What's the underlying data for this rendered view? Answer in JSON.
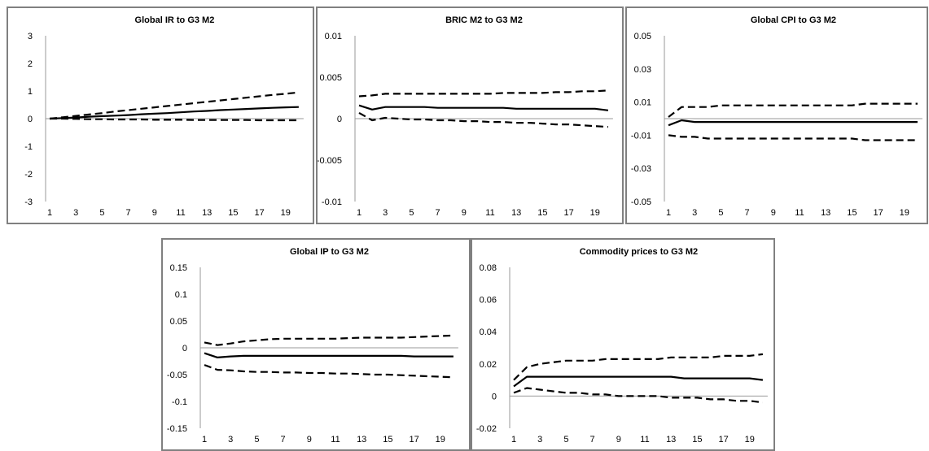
{
  "chart_data": [
    {
      "type": "line",
      "title": "Global IR to G3 M2",
      "ylim": [
        -3,
        3
      ],
      "yticks": [
        "3",
        "2",
        "1",
        "0",
        "-1",
        "-2",
        "-3"
      ],
      "ytick_values": [
        3,
        2,
        1,
        0,
        -1,
        -2,
        -3
      ],
      "x": [
        1,
        2,
        3,
        4,
        5,
        6,
        7,
        8,
        9,
        10,
        11,
        12,
        13,
        14,
        15,
        16,
        17,
        18,
        19,
        20
      ],
      "xticks": [
        "1",
        "3",
        "5",
        "7",
        "9",
        "11",
        "13",
        "15",
        "17",
        "19"
      ],
      "series": [
        {
          "style": "solid",
          "values": [
            0,
            0.02,
            0.04,
            0.07,
            0.09,
            0.11,
            0.13,
            0.16,
            0.18,
            0.2,
            0.23,
            0.26,
            0.28,
            0.31,
            0.33,
            0.35,
            0.37,
            0.39,
            0.41,
            0.42
          ]
        },
        {
          "style": "dashed",
          "values": [
            0,
            0.05,
            0.1,
            0.15,
            0.2,
            0.26,
            0.31,
            0.36,
            0.41,
            0.46,
            0.51,
            0.56,
            0.61,
            0.66,
            0.71,
            0.76,
            0.81,
            0.86,
            0.9,
            0.95
          ]
        },
        {
          "style": "dashed",
          "values": [
            0,
            0,
            -0.01,
            -0.02,
            -0.02,
            -0.03,
            -0.03,
            -0.03,
            -0.04,
            -0.04,
            -0.04,
            -0.05,
            -0.05,
            -0.05,
            -0.05,
            -0.05,
            -0.06,
            -0.06,
            -0.06,
            -0.06
          ]
        }
      ]
    },
    {
      "type": "line",
      "title": "BRIC M2  to G3 M2",
      "ylim": [
        -0.01,
        0.01
      ],
      "yticks": [
        "0.01",
        "0.005",
        "0",
        "-0.005",
        "-0.01"
      ],
      "ytick_values": [
        0.01,
        0.005,
        0,
        -0.005,
        -0.01
      ],
      "x": [
        1,
        2,
        3,
        4,
        5,
        6,
        7,
        8,
        9,
        10,
        11,
        12,
        13,
        14,
        15,
        16,
        17,
        18,
        19,
        20
      ],
      "xticks": [
        "1",
        "3",
        "5",
        "7",
        "9",
        "11",
        "13",
        "15",
        "17",
        "19"
      ],
      "series": [
        {
          "style": "solid",
          "values": [
            0.0016,
            0.0011,
            0.0014,
            0.0014,
            0.0014,
            0.0014,
            0.0013,
            0.0013,
            0.0013,
            0.0013,
            0.0013,
            0.0013,
            0.0012,
            0.0012,
            0.0012,
            0.0012,
            0.0012,
            0.0012,
            0.0012,
            0.001
          ]
        },
        {
          "style": "dashed",
          "values": [
            0.0027,
            0.0028,
            0.003,
            0.003,
            0.003,
            0.003,
            0.003,
            0.003,
            0.003,
            0.003,
            0.003,
            0.0031,
            0.0031,
            0.0031,
            0.0031,
            0.0032,
            0.0032,
            0.0033,
            0.0033,
            0.0034
          ]
        },
        {
          "style": "dashed",
          "values": [
            0.0007,
            -0.0002,
            0.0001,
            0,
            -0.0001,
            -0.0001,
            -0.0002,
            -0.0002,
            -0.0003,
            -0.0003,
            -0.0004,
            -0.0004,
            -0.0005,
            -0.0005,
            -0.0006,
            -0.0007,
            -0.0007,
            -0.0008,
            -0.0009,
            -0.001
          ]
        }
      ]
    },
    {
      "type": "line",
      "title": "Global CPI to G3 M2",
      "ylim": [
        -0.05,
        0.05
      ],
      "yticks": [
        "0.05",
        "0.03",
        "0.01",
        "-0.01",
        "-0.03",
        "-0.05"
      ],
      "ytick_values": [
        0.05,
        0.03,
        0.01,
        -0.01,
        -0.03,
        -0.05
      ],
      "x": [
        1,
        2,
        3,
        4,
        5,
        6,
        7,
        8,
        9,
        10,
        11,
        12,
        13,
        14,
        15,
        16,
        17,
        18,
        19,
        20
      ],
      "xticks": [
        "1",
        "3",
        "5",
        "7",
        "9",
        "11",
        "13",
        "15",
        "17",
        "19"
      ],
      "series": [
        {
          "style": "solid",
          "values": [
            -0.004,
            -0.001,
            -0.002,
            -0.002,
            -0.002,
            -0.002,
            -0.002,
            -0.002,
            -0.002,
            -0.002,
            -0.002,
            -0.002,
            -0.002,
            -0.002,
            -0.002,
            -0.002,
            -0.002,
            -0.002,
            -0.002,
            -0.002
          ]
        },
        {
          "style": "dashed",
          "values": [
            0.001,
            0.007,
            0.007,
            0.007,
            0.008,
            0.008,
            0.008,
            0.008,
            0.008,
            0.008,
            0.008,
            0.008,
            0.008,
            0.008,
            0.008,
            0.009,
            0.009,
            0.009,
            0.009,
            0.009
          ]
        },
        {
          "style": "dashed",
          "values": [
            -0.01,
            -0.011,
            -0.011,
            -0.012,
            -0.012,
            -0.012,
            -0.012,
            -0.012,
            -0.012,
            -0.012,
            -0.012,
            -0.012,
            -0.012,
            -0.012,
            -0.012,
            -0.013,
            -0.013,
            -0.013,
            -0.013,
            -0.013
          ]
        }
      ]
    },
    {
      "type": "line",
      "title": "Global IP to G3 M2",
      "ylim": [
        -0.15,
        0.15
      ],
      "yticks": [
        "0.15",
        "0.1",
        "0.05",
        "0",
        "-0.05",
        "-0.1",
        "-0.15"
      ],
      "ytick_values": [
        0.15,
        0.1,
        0.05,
        0,
        -0.05,
        -0.1,
        -0.15
      ],
      "x": [
        1,
        2,
        3,
        4,
        5,
        6,
        7,
        8,
        9,
        10,
        11,
        12,
        13,
        14,
        15,
        16,
        17,
        18,
        19,
        20
      ],
      "xticks": [
        "1",
        "3",
        "5",
        "7",
        "9",
        "11",
        "13",
        "15",
        "17",
        "19"
      ],
      "series": [
        {
          "style": "solid",
          "values": [
            -0.01,
            -0.018,
            -0.016,
            -0.015,
            -0.015,
            -0.015,
            -0.015,
            -0.015,
            -0.015,
            -0.015,
            -0.015,
            -0.015,
            -0.015,
            -0.015,
            -0.015,
            -0.015,
            -0.016,
            -0.016,
            -0.016,
            -0.016
          ]
        },
        {
          "style": "dashed",
          "values": [
            0.01,
            0.005,
            0.008,
            0.012,
            0.014,
            0.016,
            0.017,
            0.017,
            0.017,
            0.017,
            0.017,
            0.018,
            0.019,
            0.019,
            0.019,
            0.019,
            0.02,
            0.021,
            0.022,
            0.023
          ]
        },
        {
          "style": "dashed",
          "values": [
            -0.032,
            -0.041,
            -0.042,
            -0.044,
            -0.045,
            -0.045,
            -0.046,
            -0.046,
            -0.047,
            -0.047,
            -0.048,
            -0.048,
            -0.049,
            -0.05,
            -0.05,
            -0.051,
            -0.052,
            -0.053,
            -0.054,
            -0.055
          ]
        }
      ]
    },
    {
      "type": "line",
      "title": "Commodity prices  to G3 M2",
      "ylim": [
        -0.02,
        0.08
      ],
      "yticks": [
        "0.08",
        "0.06",
        "0.04",
        "0.02",
        "0",
        "-0.02"
      ],
      "ytick_values": [
        0.08,
        0.06,
        0.04,
        0.02,
        0,
        -0.02
      ],
      "x": [
        1,
        2,
        3,
        4,
        5,
        6,
        7,
        8,
        9,
        10,
        11,
        12,
        13,
        14,
        15,
        16,
        17,
        18,
        19,
        20
      ],
      "xticks": [
        "1",
        "3",
        "5",
        "7",
        "9",
        "11",
        "13",
        "15",
        "17",
        "19"
      ],
      "series": [
        {
          "style": "solid",
          "values": [
            0.006,
            0.012,
            0.012,
            0.012,
            0.012,
            0.012,
            0.012,
            0.012,
            0.012,
            0.012,
            0.012,
            0.012,
            0.012,
            0.011,
            0.011,
            0.011,
            0.011,
            0.011,
            0.011,
            0.01
          ]
        },
        {
          "style": "dashed",
          "values": [
            0.01,
            0.018,
            0.02,
            0.021,
            0.022,
            0.022,
            0.022,
            0.023,
            0.023,
            0.023,
            0.023,
            0.023,
            0.024,
            0.024,
            0.024,
            0.024,
            0.025,
            0.025,
            0.025,
            0.026
          ]
        },
        {
          "style": "dashed",
          "values": [
            0.002,
            0.005,
            0.004,
            0.003,
            0.002,
            0.002,
            0.001,
            0.001,
            0,
            0,
            0,
            0,
            -0.001,
            -0.001,
            -0.001,
            -0.002,
            -0.002,
            -0.003,
            -0.003,
            -0.004
          ]
        }
      ]
    }
  ]
}
